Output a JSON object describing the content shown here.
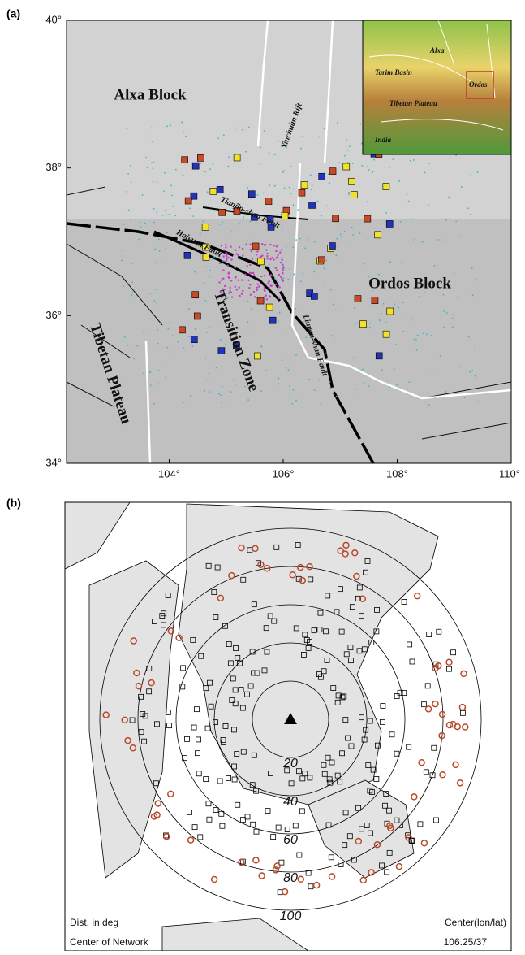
{
  "panel_a": {
    "label": "(a)",
    "xlim": [
      102.2,
      110
    ],
    "ylim": [
      34,
      40
    ],
    "xticks": [
      {
        "value": 104,
        "label": "104°"
      },
      {
        "value": 106,
        "label": "106°"
      },
      {
        "value": 108,
        "label": "108°"
      },
      {
        "value": 110,
        "label": "110°"
      }
    ],
    "yticks": [
      {
        "value": 34,
        "label": "34°"
      },
      {
        "value": 36,
        "label": "36°"
      },
      {
        "value": 38,
        "label": "38°"
      },
      {
        "value": 40,
        "label": "40°"
      }
    ],
    "map_labels": [
      "Alxa Block",
      "Ordos Block",
      "Transition Zone",
      "Tibetan Plateau",
      "Yinchuan Rift",
      "Tianjin-shan Fault",
      "Haiyuan Fault",
      "Liupan-shan Fault"
    ],
    "inset_labels": [
      "Alxa",
      "Tarim Basin",
      "Ordos",
      "Tibetan Plateau",
      "India"
    ]
  },
  "panel_b": {
    "label": "(b)",
    "rlim": [
      0,
      100
    ],
    "rings": [
      20,
      40,
      60,
      80,
      100
    ],
    "footer_left": [
      "Dist. in deg",
      "Center of Network"
    ],
    "footer_right": [
      "Center(lon/lat)",
      "106.25/37"
    ]
  }
}
